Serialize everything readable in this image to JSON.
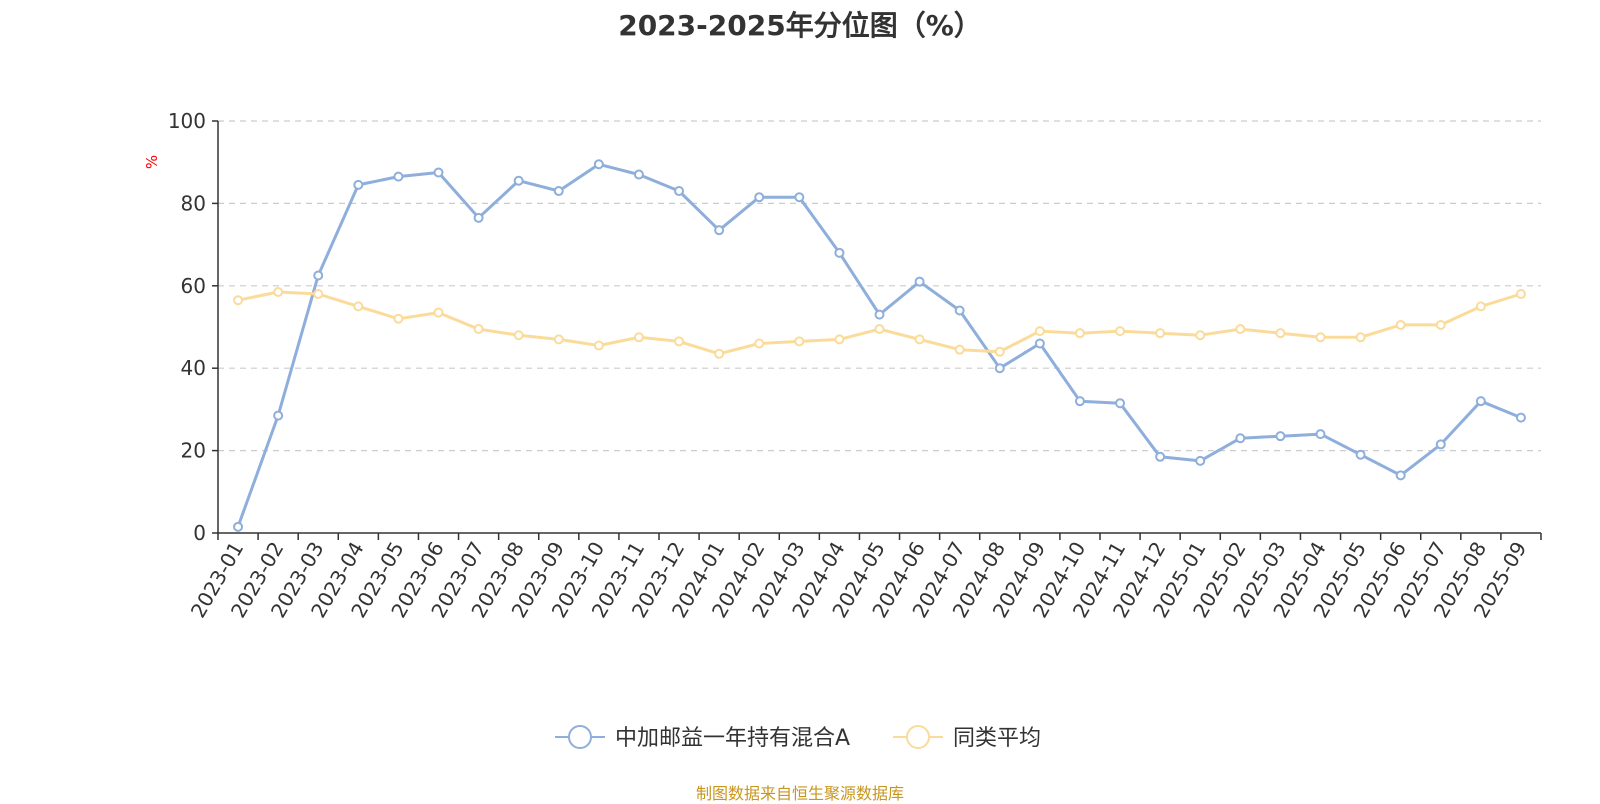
{
  "chart_data": {
    "type": "line",
    "title": "2023-2025年分位图（%）",
    "ylabel": "%",
    "xlabel": "",
    "ylim": [
      0,
      100
    ],
    "yticks": [
      0,
      20,
      40,
      60,
      80,
      100
    ],
    "grid": "horizontal dashed",
    "legend_position": "bottom-center",
    "source": "制图数据来自恒生聚源数据库",
    "categories": [
      "2023-01",
      "2023-02",
      "2023-03",
      "2023-04",
      "2023-05",
      "2023-06",
      "2023-07",
      "2023-08",
      "2023-09",
      "2023-10",
      "2023-11",
      "2023-12",
      "2024-01",
      "2024-02",
      "2024-03",
      "2024-04",
      "2024-05",
      "2024-06",
      "2024-07",
      "2024-08",
      "2024-09",
      "2024-10",
      "2024-11",
      "2024-12",
      "2025-01",
      "2025-02",
      "2025-03",
      "2025-04",
      "2025-05",
      "2025-06",
      "2025-07",
      "2025-08",
      "2025-09"
    ],
    "series": [
      {
        "name": "中加邮益一年持有混合A",
        "color": "#8eaedb",
        "values": [
          1.5,
          28.5,
          62.5,
          84.5,
          86.5,
          87.5,
          76.5,
          85.5,
          83,
          89.5,
          87,
          83,
          73.5,
          81.5,
          81.5,
          68,
          53,
          61,
          54,
          40,
          46,
          32,
          31.5,
          18.5,
          17.5,
          23,
          23.5,
          24,
          19,
          14,
          21.5,
          32,
          28
        ]
      },
      {
        "name": "同类平均",
        "color": "#fbdb9a",
        "values": [
          56.5,
          58.5,
          58,
          55,
          52,
          53.5,
          49.5,
          48,
          47,
          45.5,
          47.5,
          46.5,
          43.5,
          46,
          46.5,
          47,
          49.5,
          47,
          44.5,
          44,
          49,
          48.5,
          49,
          48.5,
          48,
          49.5,
          48.5,
          47.5,
          47.5,
          50.5,
          50.5,
          55,
          58
        ]
      }
    ]
  },
  "colors": {
    "title": "#333333",
    "axis": "#333333",
    "grid": "#cccccc",
    "ylabel": "#ff0000",
    "source": "#c8961e"
  }
}
